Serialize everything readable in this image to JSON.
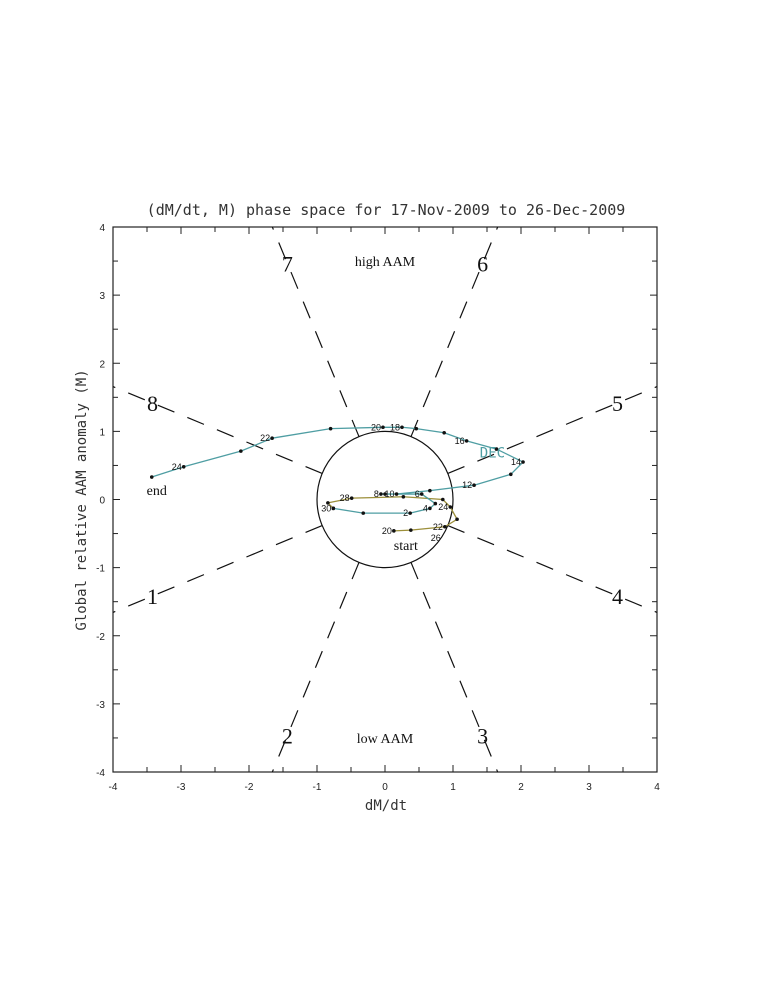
{
  "chart_data": {
    "type": "line",
    "title": "(dM/dt, M) phase space for 17-Nov-2009 to 26-Dec-2009",
    "xlabel": "dM/dt",
    "ylabel": "Global relative AAM anomaly (M)",
    "xlim": [
      -4,
      4
    ],
    "ylim": [
      -4,
      4
    ],
    "xticks": [
      "-4",
      "-3",
      "-2",
      "-1",
      "0",
      "1",
      "2",
      "3",
      "4"
    ],
    "yticks": [
      "-4",
      "-3",
      "-2",
      "-1",
      "0",
      "1",
      "2",
      "3",
      "4"
    ],
    "grid": false,
    "unit_circle_radius": 1,
    "phase_labels": [
      {
        "label": "1",
        "angle_deg": 202.5
      },
      {
        "label": "2",
        "angle_deg": 247.5
      },
      {
        "label": "3",
        "angle_deg": 292.5
      },
      {
        "label": "4",
        "angle_deg": 337.5
      },
      {
        "label": "5",
        "angle_deg": 22.5
      },
      {
        "label": "6",
        "angle_deg": 67.5
      },
      {
        "label": "7",
        "angle_deg": 112.5
      },
      {
        "label": "8",
        "angle_deg": 157.5
      }
    ],
    "annotations": {
      "high": "high AAM",
      "low": "low AAM",
      "start": "start",
      "end": "end",
      "month_label": "DEC"
    },
    "series": [
      {
        "color": "#9c8f3a",
        "points": [
          {
            "x": 0.13,
            "y": -0.46,
            "label": "20"
          },
          {
            "x": 0.38,
            "y": -0.45,
            "label": ""
          },
          {
            "x": 0.88,
            "y": -0.4,
            "label": "22"
          },
          {
            "x": 1.06,
            "y": -0.29,
            "label": ""
          },
          {
            "x": 0.96,
            "y": -0.11,
            "label": "24"
          },
          {
            "x": 0.85,
            "y": 0.0,
            "label": "26"
          },
          {
            "x": 0.27,
            "y": 0.04,
            "label": ""
          },
          {
            "x": -0.49,
            "y": 0.02,
            "label": "28"
          },
          {
            "x": -0.84,
            "y": -0.05,
            "label": ""
          },
          {
            "x": -0.76,
            "y": -0.13,
            "label": "30"
          }
        ]
      },
      {
        "color": "#4f9ea3",
        "points": [
          {
            "x": -0.76,
            "y": -0.13,
            "label": ""
          },
          {
            "x": -0.32,
            "y": -0.2,
            "label": ""
          },
          {
            "x": 0.37,
            "y": -0.2,
            "label": "2"
          },
          {
            "x": 0.66,
            "y": -0.13,
            "label": "4"
          },
          {
            "x": 0.74,
            "y": -0.06,
            "label": ""
          },
          {
            "x": 0.54,
            "y": 0.08,
            "label": "6"
          },
          {
            "x": -0.06,
            "y": 0.08,
            "label": "8"
          },
          {
            "x": 0.0,
            "y": 0.08,
            "label": ""
          },
          {
            "x": 0.17,
            "y": 0.08,
            "label": "10"
          },
          {
            "x": 0.66,
            "y": 0.13,
            "label": ""
          },
          {
            "x": 1.31,
            "y": 0.21,
            "label": "12"
          },
          {
            "x": 1.85,
            "y": 0.37,
            "label": ""
          },
          {
            "x": 2.03,
            "y": 0.55,
            "label": "14"
          },
          {
            "x": 1.64,
            "y": 0.74,
            "label": ""
          },
          {
            "x": 1.2,
            "y": 0.86,
            "label": "16"
          },
          {
            "x": 0.87,
            "y": 0.98,
            "label": ""
          },
          {
            "x": 0.46,
            "y": 1.04,
            "label": ""
          },
          {
            "x": 0.25,
            "y": 1.06,
            "label": "18"
          },
          {
            "x": -0.03,
            "y": 1.06,
            "label": "20"
          },
          {
            "x": -0.8,
            "y": 1.04,
            "label": ""
          },
          {
            "x": -1.66,
            "y": 0.9,
            "label": "22"
          },
          {
            "x": -2.12,
            "y": 0.71,
            "label": ""
          },
          {
            "x": -2.96,
            "y": 0.48,
            "label": "24"
          },
          {
            "x": -3.43,
            "y": 0.33,
            "label": ""
          }
        ]
      }
    ]
  }
}
